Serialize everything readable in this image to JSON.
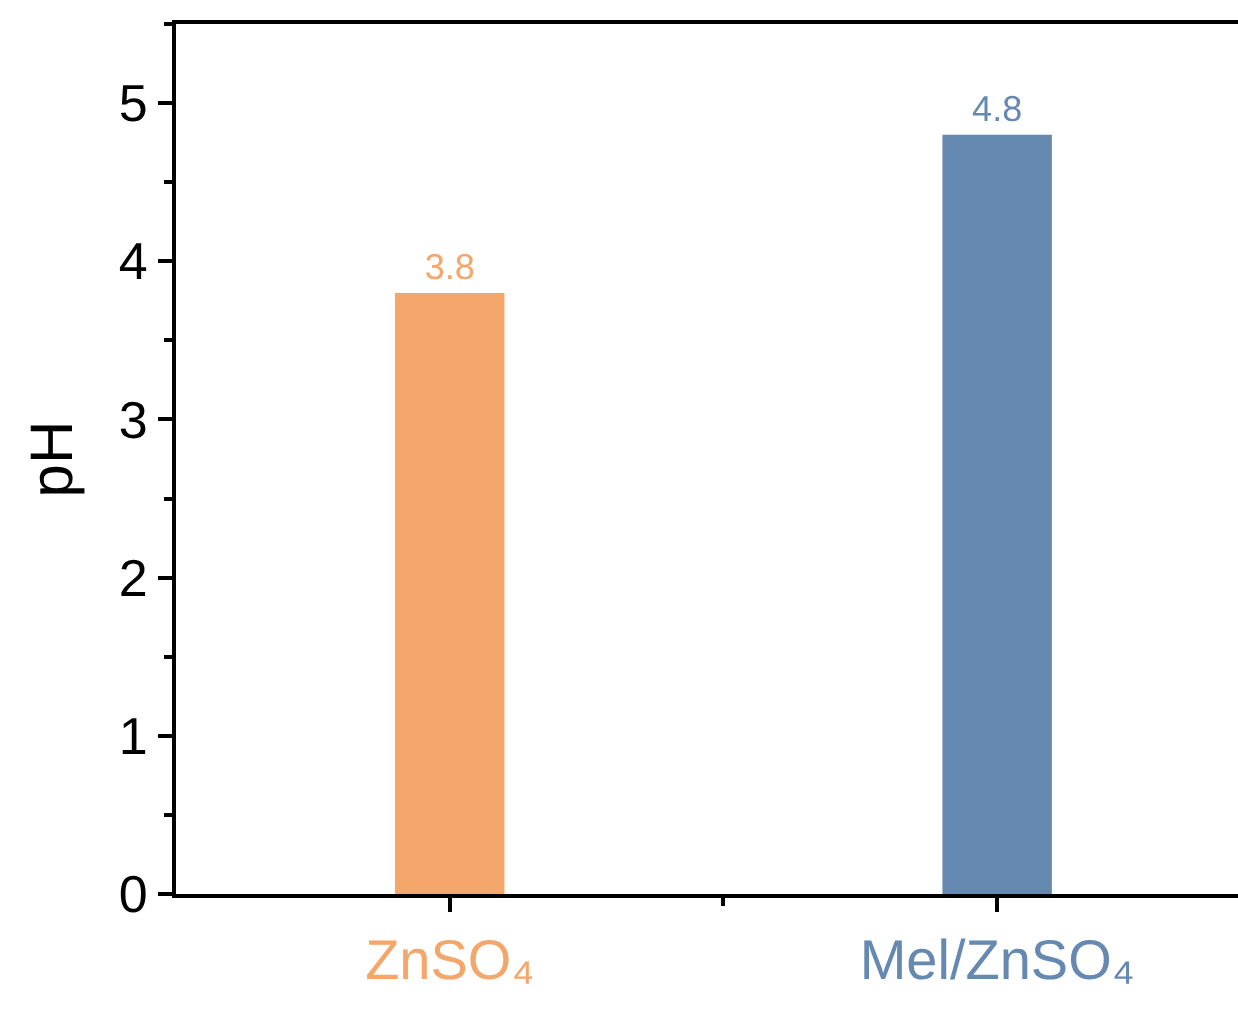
{
  "chart_data": {
    "type": "bar",
    "ylabel": "pH",
    "categories": [
      "ZnSO₄",
      "Mel/ZnSO₄"
    ],
    "values": [
      3.8,
      4.8
    ],
    "colors": [
      "#f5a66a",
      "#6589b0"
    ],
    "data_labels": true,
    "ylim": [
      0,
      5.5
    ],
    "yticks": [
      0,
      1,
      2,
      3,
      4,
      5
    ]
  }
}
